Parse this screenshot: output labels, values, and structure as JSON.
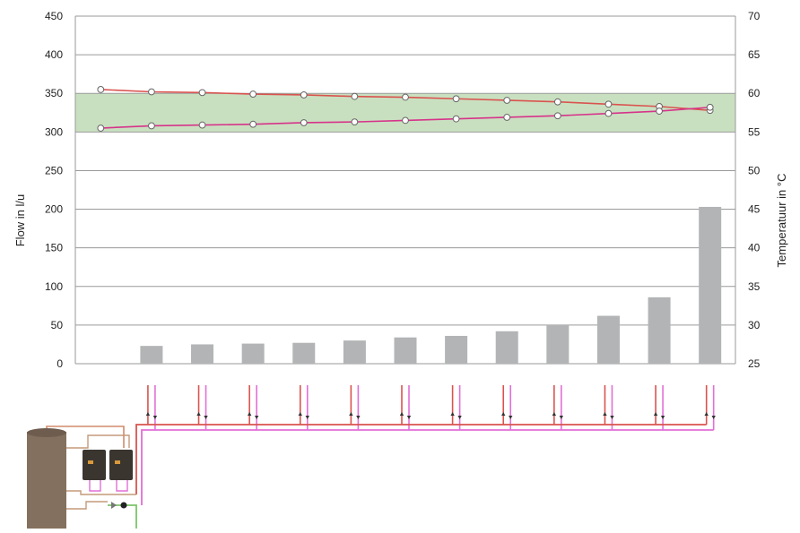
{
  "chart_data": {
    "type": "bar",
    "title": "",
    "ylabel": "Flow in l/u",
    "y2label": "Temperatuur in °C",
    "ylim": [
      0,
      450
    ],
    "y2lim": [
      25,
      70
    ],
    "yticks": [
      0,
      50,
      100,
      150,
      200,
      250,
      300,
      350,
      400,
      450
    ],
    "y2ticks": [
      25,
      30,
      35,
      40,
      45,
      50,
      55,
      60,
      65,
      70
    ],
    "grid": true,
    "slots": 13,
    "bars": [
      null,
      23,
      25,
      26,
      27,
      30,
      34,
      36,
      42,
      50,
      62,
      86,
      203
    ],
    "band": {
      "y2_from": 55,
      "y2_to": 60,
      "color": "#c9e0c0"
    },
    "series": [
      {
        "axis": "right",
        "color": "#d9534f",
        "values": [
          60.5,
          60.2,
          60.1,
          59.9,
          59.8,
          59.6,
          59.5,
          59.3,
          59.1,
          58.9,
          58.6,
          58.3,
          57.8
        ]
      },
      {
        "axis": "right",
        "color": "#d6338a",
        "values": [
          55.5,
          55.8,
          55.9,
          56.0,
          56.2,
          56.3,
          56.5,
          56.7,
          56.9,
          57.1,
          57.4,
          57.7,
          58.2
        ]
      }
    ],
    "colors": {
      "bar": "#b2b4b5",
      "grid": "#9a9a9a",
      "axis_text": "#222222"
    }
  },
  "schematic": {
    "tank_color": "#84705f",
    "supply_pipe": "#d9534f",
    "return_pipe": "#e26fd6",
    "cold_pipe": "#7cc46a",
    "units": 2
  }
}
